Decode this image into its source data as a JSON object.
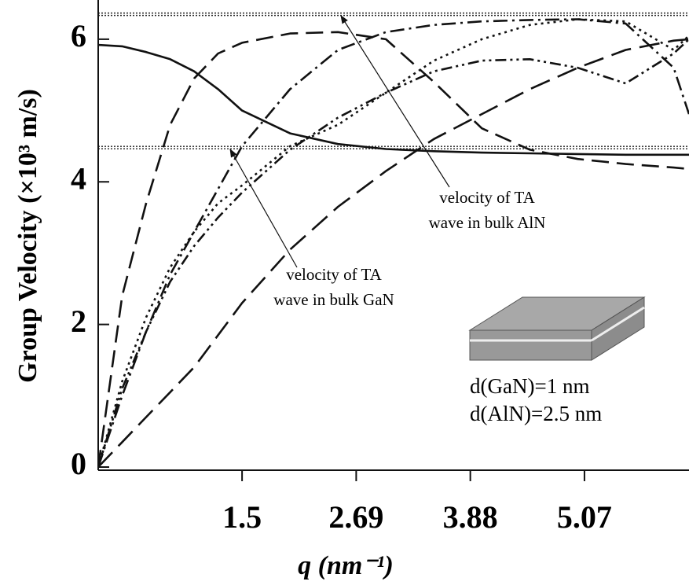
{
  "chart_data": {
    "type": "line",
    "ylabel": "Group Velocity (×10³ m/s)",
    "xlabel": "q (nm⁻¹)",
    "x": [
      0,
      0.25,
      0.5,
      0.75,
      1,
      1.25,
      1.5,
      2,
      2.5,
      3,
      3.5,
      4,
      4.5,
      5,
      5.5,
      6,
      6.16
    ],
    "xlim": [
      0,
      6.16
    ],
    "ylim": [
      0,
      6.55
    ],
    "xticks": [
      1.5,
      2.69,
      3.88,
      5.07
    ],
    "yticks": [
      0,
      2,
      4,
      6
    ],
    "series": [
      {
        "color": "#111111",
        "dash": "solid",
        "values": [
          5.92,
          5.9,
          5.82,
          5.72,
          5.55,
          5.3,
          5.0,
          4.68,
          4.53,
          4.46,
          4.43,
          4.41,
          4.4,
          4.39,
          4.38,
          4.38,
          4.38
        ]
      },
      {
        "color": "#111111",
        "dash": "dashed",
        "values": [
          0,
          2.4,
          3.7,
          4.8,
          5.45,
          5.8,
          5.95,
          6.08,
          6.1,
          6.0,
          5.4,
          4.75,
          4.45,
          4.32,
          4.25,
          4.2,
          4.18
        ]
      },
      {
        "color": "#111111",
        "dash": "dashdot",
        "values": [
          0,
          1.0,
          1.9,
          2.7,
          3.3,
          3.9,
          4.5,
          5.3,
          5.85,
          6.1,
          6.2,
          6.25,
          6.27,
          6.28,
          6.22,
          5.6,
          4.95
        ]
      },
      {
        "color": "#111111",
        "dash": "dotted",
        "values": [
          0,
          1.2,
          2.1,
          2.8,
          3.3,
          3.7,
          3.95,
          4.5,
          4.8,
          5.25,
          5.7,
          6.0,
          6.2,
          6.28,
          6.25,
          5.85,
          6.05
        ]
      },
      {
        "color": "#111111",
        "dash": "dashdotdot",
        "values": [
          0,
          1.1,
          1.9,
          2.6,
          3.1,
          3.5,
          3.85,
          4.45,
          4.9,
          5.25,
          5.55,
          5.7,
          5.72,
          5.6,
          5.38,
          5.8,
          6.0
        ]
      },
      {
        "color": "#111111",
        "dash": "longdash",
        "values": [
          0,
          0.35,
          0.7,
          1.05,
          1.4,
          1.85,
          2.3,
          3.05,
          3.65,
          4.15,
          4.6,
          4.95,
          5.3,
          5.6,
          5.85,
          5.98,
          6.0
        ]
      }
    ],
    "hlines": [
      6.35,
      4.48
    ],
    "annotations": [
      {
        "lines": [
          "velocity of TA",
          "wave in bulk AlN"
        ]
      },
      {
        "lines": [
          "velocity of TA",
          "wave in bulk GaN"
        ]
      }
    ],
    "inset_labels": [
      "d(GaN)=1 nm",
      "d(AlN)=2.5 nm"
    ]
  }
}
